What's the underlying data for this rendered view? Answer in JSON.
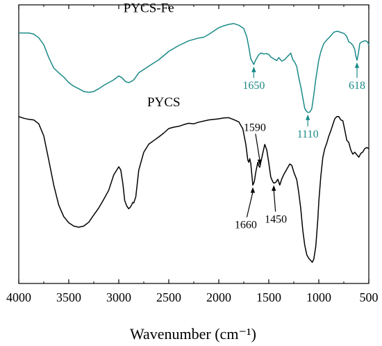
{
  "chart_data": {
    "type": "line",
    "title": "",
    "xlabel": "Wavenumber (cm⁻¹)",
    "ylabel": "",
    "xlim": [
      4000,
      500
    ],
    "x_reversed": true,
    "x_ticks": [
      4000,
      3500,
      3000,
      2500,
      2000,
      1500,
      1000,
      500
    ],
    "x_tick_labels": [
      "4000",
      "3500",
      "3000",
      "2500",
      "2000",
      "1500",
      "1000",
      "500"
    ],
    "y_units": "transmittance (arbitrary, offset)",
    "ylim": [
      0,
      100
    ],
    "y_ticks_shown": false,
    "grid": false,
    "series": [
      {
        "name": "PYCS-Fe",
        "color": "#1a8a87",
        "points": [
          [
            4000,
            89.9
          ],
          [
            3900,
            89.9
          ],
          [
            3850,
            89.5
          ],
          [
            3800,
            88.2
          ],
          [
            3750,
            85.7
          ],
          [
            3700,
            81.1
          ],
          [
            3650,
            77.3
          ],
          [
            3600,
            75.6
          ],
          [
            3550,
            74.1
          ],
          [
            3500,
            72.1
          ],
          [
            3450,
            70.8
          ],
          [
            3400,
            69.9
          ],
          [
            3350,
            68.9
          ],
          [
            3300,
            68.6
          ],
          [
            3250,
            68.9
          ],
          [
            3200,
            69.9
          ],
          [
            3150,
            71.1
          ],
          [
            3100,
            72.1
          ],
          [
            3050,
            73.1
          ],
          [
            3000,
            74.5
          ],
          [
            2970,
            73.9
          ],
          [
            2930,
            72.4
          ],
          [
            2900,
            72.1
          ],
          [
            2870,
            72.6
          ],
          [
            2850,
            73.1
          ],
          [
            2800,
            75.6
          ],
          [
            2700,
            78.0
          ],
          [
            2600,
            80.3
          ],
          [
            2500,
            83.3
          ],
          [
            2400,
            85.4
          ],
          [
            2300,
            87.1
          ],
          [
            2200,
            88.1
          ],
          [
            2150,
            88.4
          ],
          [
            2100,
            89.4
          ],
          [
            2000,
            91.8
          ],
          [
            1950,
            92.5
          ],
          [
            1900,
            93.0
          ],
          [
            1850,
            93.3
          ],
          [
            1800,
            92.7
          ],
          [
            1750,
            91.5
          ],
          [
            1720,
            88.6
          ],
          [
            1700,
            84.9
          ],
          [
            1680,
            80.6
          ],
          [
            1660,
            79.3
          ],
          [
            1650,
            78.6
          ],
          [
            1630,
            80.3
          ],
          [
            1600,
            82.1
          ],
          [
            1580,
            82.7
          ],
          [
            1550,
            82.4
          ],
          [
            1520,
            82.5
          ],
          [
            1500,
            82.2
          ],
          [
            1480,
            81.3
          ],
          [
            1450,
            80.6
          ],
          [
            1420,
            80.0
          ],
          [
            1400,
            81.1
          ],
          [
            1370,
            79.8
          ],
          [
            1340,
            80.4
          ],
          [
            1310,
            81.6
          ],
          [
            1280,
            82.7
          ],
          [
            1260,
            80.3
          ],
          [
            1240,
            79.4
          ],
          [
            1220,
            77.8
          ],
          [
            1200,
            73.8
          ],
          [
            1180,
            70.6
          ],
          [
            1160,
            66.6
          ],
          [
            1140,
            62.8
          ],
          [
            1120,
            61.7
          ],
          [
            1110,
            61.4
          ],
          [
            1090,
            61.5
          ],
          [
            1070,
            62.7
          ],
          [
            1050,
            67.7
          ],
          [
            1030,
            73.4
          ],
          [
            1000,
            80.2
          ],
          [
            980,
            83.2
          ],
          [
            950,
            86.1
          ],
          [
            920,
            87.4
          ],
          [
            880,
            88.9
          ],
          [
            850,
            90.2
          ],
          [
            820,
            90.5
          ],
          [
            800,
            90.4
          ],
          [
            780,
            90.1
          ],
          [
            760,
            89.9
          ],
          [
            740,
            89.5
          ],
          [
            720,
            88.6
          ],
          [
            700,
            86.7
          ],
          [
            680,
            86.3
          ],
          [
            660,
            85.5
          ],
          [
            640,
            84.0
          ],
          [
            630,
            81.7
          ],
          [
            618,
            80.1
          ],
          [
            605,
            82.4
          ],
          [
            590,
            86.1
          ],
          [
            570,
            86.7
          ],
          [
            550,
            87.0
          ],
          [
            530,
            87.1
          ],
          [
            510,
            86.6
          ],
          [
            500,
            85.5
          ]
        ]
      },
      {
        "name": "PYCS",
        "color": "#000000",
        "points": [
          [
            4000,
            59.9
          ],
          [
            3950,
            59.3
          ],
          [
            3900,
            58.9
          ],
          [
            3850,
            58.7
          ],
          [
            3800,
            57.3
          ],
          [
            3750,
            53.0
          ],
          [
            3700,
            44.3
          ],
          [
            3650,
            35.3
          ],
          [
            3600,
            28.1
          ],
          [
            3550,
            24.0
          ],
          [
            3500,
            21.8
          ],
          [
            3450,
            20.6
          ],
          [
            3400,
            20.2
          ],
          [
            3350,
            20.6
          ],
          [
            3300,
            22.0
          ],
          [
            3250,
            24.6
          ],
          [
            3200,
            27.1
          ],
          [
            3150,
            30.2
          ],
          [
            3100,
            33.5
          ],
          [
            3050,
            39.0
          ],
          [
            3000,
            41.9
          ],
          [
            2980,
            40.7
          ],
          [
            2960,
            36.0
          ],
          [
            2940,
            29.7
          ],
          [
            2920,
            27.8
          ],
          [
            2900,
            26.8
          ],
          [
            2880,
            27.6
          ],
          [
            2860,
            29.1
          ],
          [
            2850,
            28.9
          ],
          [
            2830,
            31.1
          ],
          [
            2800,
            40.7
          ],
          [
            2750,
            47.1
          ],
          [
            2700,
            50.0
          ],
          [
            2650,
            51.3
          ],
          [
            2600,
            52.6
          ],
          [
            2550,
            54.0
          ],
          [
            2500,
            55.6
          ],
          [
            2450,
            56.1
          ],
          [
            2400,
            56.4
          ],
          [
            2350,
            57.0
          ],
          [
            2300,
            57.5
          ],
          [
            2250,
            57.3
          ],
          [
            2200,
            57.9
          ],
          [
            2100,
            58.7
          ],
          [
            2000,
            59.1
          ],
          [
            1950,
            59.4
          ],
          [
            1900,
            59.5
          ],
          [
            1850,
            58.8
          ],
          [
            1800,
            58.0
          ],
          [
            1760,
            55.5
          ],
          [
            1730,
            50.0
          ],
          [
            1710,
            44.3
          ],
          [
            1700,
            43.5
          ],
          [
            1690,
            44.8
          ],
          [
            1680,
            43.0
          ],
          [
            1660,
            35.3
          ],
          [
            1645,
            36.5
          ],
          [
            1630,
            40.0
          ],
          [
            1610,
            43.5
          ],
          [
            1600,
            42.2
          ],
          [
            1590,
            41.7
          ],
          [
            1580,
            43.5
          ],
          [
            1560,
            46.8
          ],
          [
            1540,
            49.9
          ],
          [
            1520,
            47.9
          ],
          [
            1500,
            43.3
          ],
          [
            1480,
            38.1
          ],
          [
            1460,
            36.5
          ],
          [
            1450,
            36.0
          ],
          [
            1430,
            36.3
          ],
          [
            1410,
            37.4
          ],
          [
            1390,
            35.3
          ],
          [
            1370,
            37.5
          ],
          [
            1350,
            39.1
          ],
          [
            1320,
            41.0
          ],
          [
            1290,
            42.9
          ],
          [
            1270,
            42.4
          ],
          [
            1250,
            40.0
          ],
          [
            1220,
            37.2
          ],
          [
            1200,
            32.5
          ],
          [
            1180,
            26.7
          ],
          [
            1160,
            19.0
          ],
          [
            1140,
            13.7
          ],
          [
            1120,
            10.3
          ],
          [
            1100,
            9.0
          ],
          [
            1080,
            8.2
          ],
          [
            1065,
            7.6
          ],
          [
            1050,
            8.7
          ],
          [
            1030,
            13.4
          ],
          [
            1010,
            23.0
          ],
          [
            1000,
            29.3
          ],
          [
            980,
            38.5
          ],
          [
            960,
            45.2
          ],
          [
            940,
            48.4
          ],
          [
            920,
            50.4
          ],
          [
            900,
            52.9
          ],
          [
            880,
            54.8
          ],
          [
            860,
            57.0
          ],
          [
            840,
            59.1
          ],
          [
            820,
            59.9
          ],
          [
            800,
            59.9
          ],
          [
            780,
            58.7
          ],
          [
            760,
            58.4
          ],
          [
            740,
            55.1
          ],
          [
            720,
            51.4
          ],
          [
            700,
            50.6
          ],
          [
            680,
            47.9
          ],
          [
            660,
            46.4
          ],
          [
            640,
            47.1
          ],
          [
            620,
            46.2
          ],
          [
            600,
            45.3
          ],
          [
            580,
            46.7
          ],
          [
            560,
            47.2
          ],
          [
            540,
            48.4
          ],
          [
            520,
            48.8
          ],
          [
            500,
            48.4
          ]
        ]
      }
    ],
    "series_labels": [
      {
        "text": "PYCS-Fe",
        "x": 2700,
        "y": 97.4,
        "color": "#000000"
      },
      {
        "text": "PYCS",
        "x": 2550,
        "y": 63.6,
        "color": "#000000"
      }
    ],
    "annotations": [
      {
        "text": "1650",
        "x": 1650,
        "y": 78.6,
        "color": "#1a8a87",
        "label_x": 1650,
        "label_y": 69.8,
        "arrow": "up"
      },
      {
        "text": "1110",
        "x": 1110,
        "y": 61.4,
        "color": "#1a8a87",
        "label_x": 1110,
        "label_y": 52.4,
        "arrow": "up"
      },
      {
        "text": "618",
        "x": 618,
        "y": 80.1,
        "color": "#1a8a87",
        "label_x": 618,
        "label_y": 69.8,
        "arrow": "up"
      },
      {
        "text": "1660",
        "x": 1660,
        "y": 35.3,
        "color": "#000000",
        "label_x": 1730,
        "label_y": 19.8,
        "arrow": "up"
      },
      {
        "text": "1590",
        "x": 1590,
        "y": 41.7,
        "color": "#000000",
        "label_x": 1640,
        "label_y": 54.7,
        "arrow": "down"
      },
      {
        "text": "1450",
        "x": 1450,
        "y": 36.0,
        "color": "#000000",
        "label_x": 1430,
        "label_y": 21.8,
        "arrow": "up"
      }
    ]
  }
}
